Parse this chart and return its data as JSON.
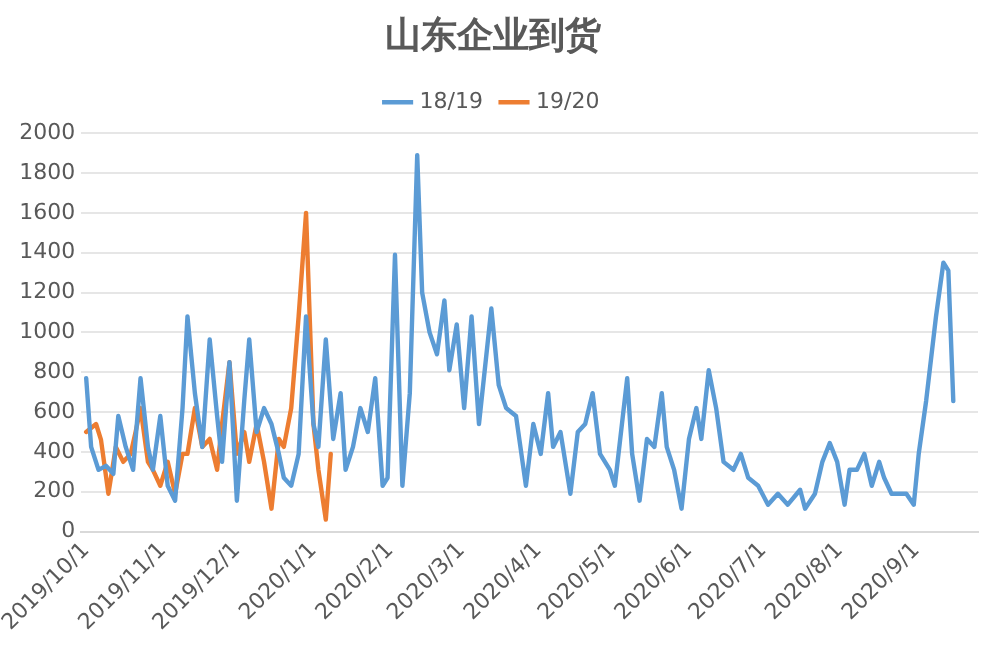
{
  "chart_data": {
    "type": "line",
    "title": "山东企业到货",
    "xlim": [
      "2019-09-29",
      "2020-09-26"
    ],
    "xticks": [
      {
        "value": "2019-10-01",
        "label": "2019/10/1"
      },
      {
        "value": "2019-11-01",
        "label": "2019/11/1"
      },
      {
        "value": "2019-12-01",
        "label": "2019/12/1"
      },
      {
        "value": "2020-01-01",
        "label": "2020/1/1"
      },
      {
        "value": "2020-02-01",
        "label": "2020/2/1"
      },
      {
        "value": "2020-03-01",
        "label": "2020/3/1"
      },
      {
        "value": "2020-04-01",
        "label": "2020/4/1"
      },
      {
        "value": "2020-05-01",
        "label": "2020/5/1"
      },
      {
        "value": "2020-06-01",
        "label": "2020/6/1"
      },
      {
        "value": "2020-07-01",
        "label": "2020/7/1"
      },
      {
        "value": "2020-08-01",
        "label": "2020/8/1"
      },
      {
        "value": "2020-09-01",
        "label": "2020/9/1"
      }
    ],
    "ylim": [
      0,
      2000
    ],
    "yticks": [
      0,
      200,
      400,
      600,
      800,
      1000,
      1200,
      1400,
      1600,
      1800,
      2000
    ],
    "grid": "y",
    "legend": "top",
    "marker": "none",
    "line_style": "solid",
    "series": [
      {
        "name": "18/19",
        "color": "#5b9bd5",
        "x": [
          "2019-10-01",
          "2019-10-03",
          "2019-10-06",
          "2019-10-09",
          "2019-10-12",
          "2019-10-14",
          "2019-10-17",
          "2019-10-20",
          "2019-10-23",
          "2019-10-26",
          "2019-10-28",
          "2019-10-31",
          "2019-11-03",
          "2019-11-06",
          "2019-11-09",
          "2019-11-11",
          "2019-11-14",
          "2019-11-17",
          "2019-11-20",
          "2019-11-23",
          "2019-11-25",
          "2019-11-28",
          "2019-12-01",
          "2019-12-04",
          "2019-12-06",
          "2019-12-09",
          "2019-12-12",
          "2019-12-15",
          "2019-12-18",
          "2019-12-20",
          "2019-12-23",
          "2019-12-26",
          "2019-12-29",
          "2020-01-01",
          "2020-01-03",
          "2020-01-06",
          "2020-01-09",
          "2020-01-12",
          "2020-01-14",
          "2020-01-17",
          "2020-01-20",
          "2020-01-23",
          "2020-01-26",
          "2020-01-29",
          "2020-01-31",
          "2020-02-03",
          "2020-02-06",
          "2020-02-09",
          "2020-02-12",
          "2020-02-14",
          "2020-02-17",
          "2020-02-20",
          "2020-02-23",
          "2020-02-25",
          "2020-02-28",
          "2020-03-02",
          "2020-03-05",
          "2020-03-08",
          "2020-03-13",
          "2020-03-16",
          "2020-03-19",
          "2020-03-23",
          "2020-03-27",
          "2020-03-30",
          "2020-04-02",
          "2020-04-05",
          "2020-04-07",
          "2020-04-10",
          "2020-04-14",
          "2020-04-17",
          "2020-04-20",
          "2020-04-23",
          "2020-04-26",
          "2020-04-30",
          "2020-05-02",
          "2020-05-07",
          "2020-05-09",
          "2020-05-12",
          "2020-05-15",
          "2020-05-18",
          "2020-05-21",
          "2020-05-23",
          "2020-05-26",
          "2020-05-29",
          "2020-06-01",
          "2020-06-04",
          "2020-06-06",
          "2020-06-09",
          "2020-06-12",
          "2020-06-15",
          "2020-06-19",
          "2020-06-22",
          "2020-06-25",
          "2020-06-29",
          "2020-07-03",
          "2020-07-07",
          "2020-07-11",
          "2020-07-16",
          "2020-07-18",
          "2020-07-22",
          "2020-07-25",
          "2020-07-28",
          "2020-07-31",
          "2020-08-03",
          "2020-08-05",
          "2020-08-08",
          "2020-08-11",
          "2020-08-14",
          "2020-08-17",
          "2020-08-19",
          "2020-08-22",
          "2020-08-25",
          "2020-08-28",
          "2020-08-31",
          "2020-09-02",
          "2020-09-05",
          "2020-09-09",
          "2020-09-12",
          "2020-09-14",
          "2020-09-16"
        ],
        "values": [
          770,
          425,
          310,
          330,
          290,
          580,
          425,
          310,
          770,
          425,
          310,
          580,
          230,
          155,
          620,
          1080,
          695,
          425,
          965,
          580,
          350,
          850,
          155,
          660,
          965,
          500,
          620,
          540,
          390,
          270,
          230,
          390,
          1080,
          540,
          425,
          965,
          465,
          695,
          310,
          425,
          620,
          500,
          770,
          230,
          270,
          1390,
          230,
          695,
          1890,
          1200,
          1000,
          890,
          1160,
          810,
          1040,
          620,
          1080,
          540,
          1120,
          735,
          620,
          580,
          230,
          540,
          390,
          695,
          425,
          500,
          190,
          500,
          540,
          695,
          390,
          310,
          230,
          770,
          390,
          155,
          465,
          425,
          695,
          425,
          310,
          115,
          465,
          620,
          465,
          810,
          620,
          350,
          310,
          390,
          270,
          230,
          135,
          190,
          135,
          210,
          115,
          190,
          350,
          445,
          350,
          135,
          310,
          310,
          390,
          230,
          350,
          270,
          190,
          190,
          190,
          135,
          390,
          655,
          1080,
          1350,
          1310,
          655
        ]
      },
      {
        "name": "19/20",
        "color": "#ed7d31",
        "x": [
          "2019-10-01",
          "2019-10-05",
          "2019-10-07",
          "2019-10-10",
          "2019-10-13",
          "2019-10-16",
          "2019-10-19",
          "2019-10-21",
          "2019-10-23",
          "2019-10-26",
          "2019-10-28",
          "2019-10-31",
          "2019-11-03",
          "2019-11-06",
          "2019-11-09",
          "2019-11-11",
          "2019-11-14",
          "2019-11-17",
          "2019-11-20",
          "2019-11-23",
          "2019-11-25",
          "2019-11-28",
          "2019-12-01",
          "2019-12-04",
          "2019-12-06",
          "2019-12-09",
          "2019-12-12",
          "2019-12-15",
          "2019-12-18",
          "2019-12-20",
          "2019-12-23",
          "2019-12-26",
          "2019-12-29",
          "2020-01-01",
          "2020-01-03",
          "2020-01-06",
          "2020-01-08"
        ],
        "values": [
          500,
          540,
          460,
          190,
          425,
          350,
          390,
          500,
          620,
          350,
          310,
          230,
          350,
          190,
          390,
          390,
          620,
          425,
          465,
          310,
          540,
          850,
          390,
          500,
          350,
          540,
          350,
          115,
          465,
          425,
          620,
          1080,
          1600,
          540,
          310,
          60,
          390
        ]
      }
    ]
  }
}
